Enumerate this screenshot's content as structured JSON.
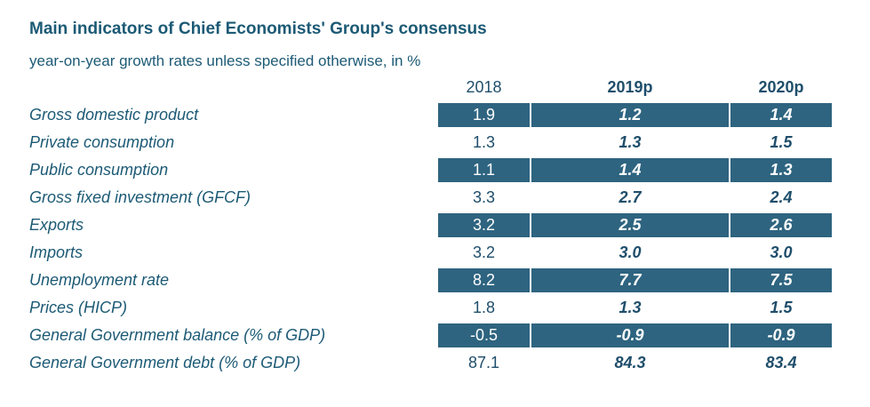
{
  "title": "Main indicators of Chief Economists' Group's consensus",
  "subtitle": "year-on-year growth rates unless specified otherwise, in %",
  "columns": [
    "2018",
    "2019p",
    "2020p"
  ],
  "rows": [
    {
      "label": "Gross domestic product",
      "v2018": "1.9",
      "v2019": "1.2",
      "v2020": "1.4"
    },
    {
      "label": "Private consumption",
      "v2018": "1.3",
      "v2019": "1.3",
      "v2020": "1.5"
    },
    {
      "label": "Public consumption",
      "v2018": "1.1",
      "v2019": "1.4",
      "v2020": "1.3"
    },
    {
      "label": "Gross fixed investment (GFCF)",
      "v2018": "3.3",
      "v2019": "2.7",
      "v2020": "2.4"
    },
    {
      "label": "Exports",
      "v2018": "3.2",
      "v2019": "2.5",
      "v2020": "2.6"
    },
    {
      "label": "Imports",
      "v2018": "3.2",
      "v2019": "3.0",
      "v2020": "3.0"
    },
    {
      "label": "Unemployment rate",
      "v2018": "8.2",
      "v2019": "7.7",
      "v2020": "7.5"
    },
    {
      "label": "Prices (HICP)",
      "v2018": "1.8",
      "v2019": "1.3",
      "v2020": "1.5"
    },
    {
      "label": "General Government balance (% of GDP)",
      "v2018": "-0.5",
      "v2019": "-0.9",
      "v2020": "-0.9"
    },
    {
      "label": "General Government debt (% of GDP)",
      "v2018": "87.1",
      "v2019": "84.3",
      "v2020": "83.4"
    }
  ],
  "colors": {
    "shade": "#2e6480",
    "text": "#1c5a75"
  }
}
